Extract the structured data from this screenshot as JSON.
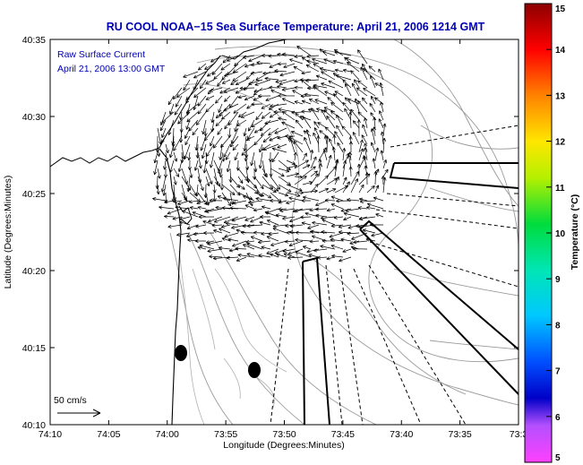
{
  "chart_data": {
    "type": "vector-field map",
    "title": "RU COOL  NOAA−15  Sea Surface Temperature:  April 21, 2006 1214 GMT",
    "annotation_lines": [
      "Raw Surface Current",
      "April 21, 2006 13:00 GMT"
    ],
    "xlabel": "Longitude (Degrees:Minutes)",
    "ylabel": "Latitude (Degrees:Minutes)",
    "xlim_minutes_west": [
      10,
      30
    ],
    "ylim_minutes_north": [
      10,
      35
    ],
    "x_ticks": [
      "74:10",
      "74:05",
      "74:00",
      "73:55",
      "73:50",
      "73:45",
      "73:40",
      "73:35",
      "73:3"
    ],
    "y_ticks": [
      "40:10",
      "40:15",
      "40:20",
      "40:25",
      "40:30",
      "40:35"
    ],
    "colorbar": {
      "label": "Temperature (°C)",
      "range": [
        5,
        15
      ],
      "ticks": [
        "5",
        "6",
        "7",
        "8",
        "9",
        "10",
        "11",
        "12",
        "13",
        "14",
        "15"
      ]
    },
    "scale_label": "50 cm/s",
    "grid": false,
    "legend": "none"
  }
}
